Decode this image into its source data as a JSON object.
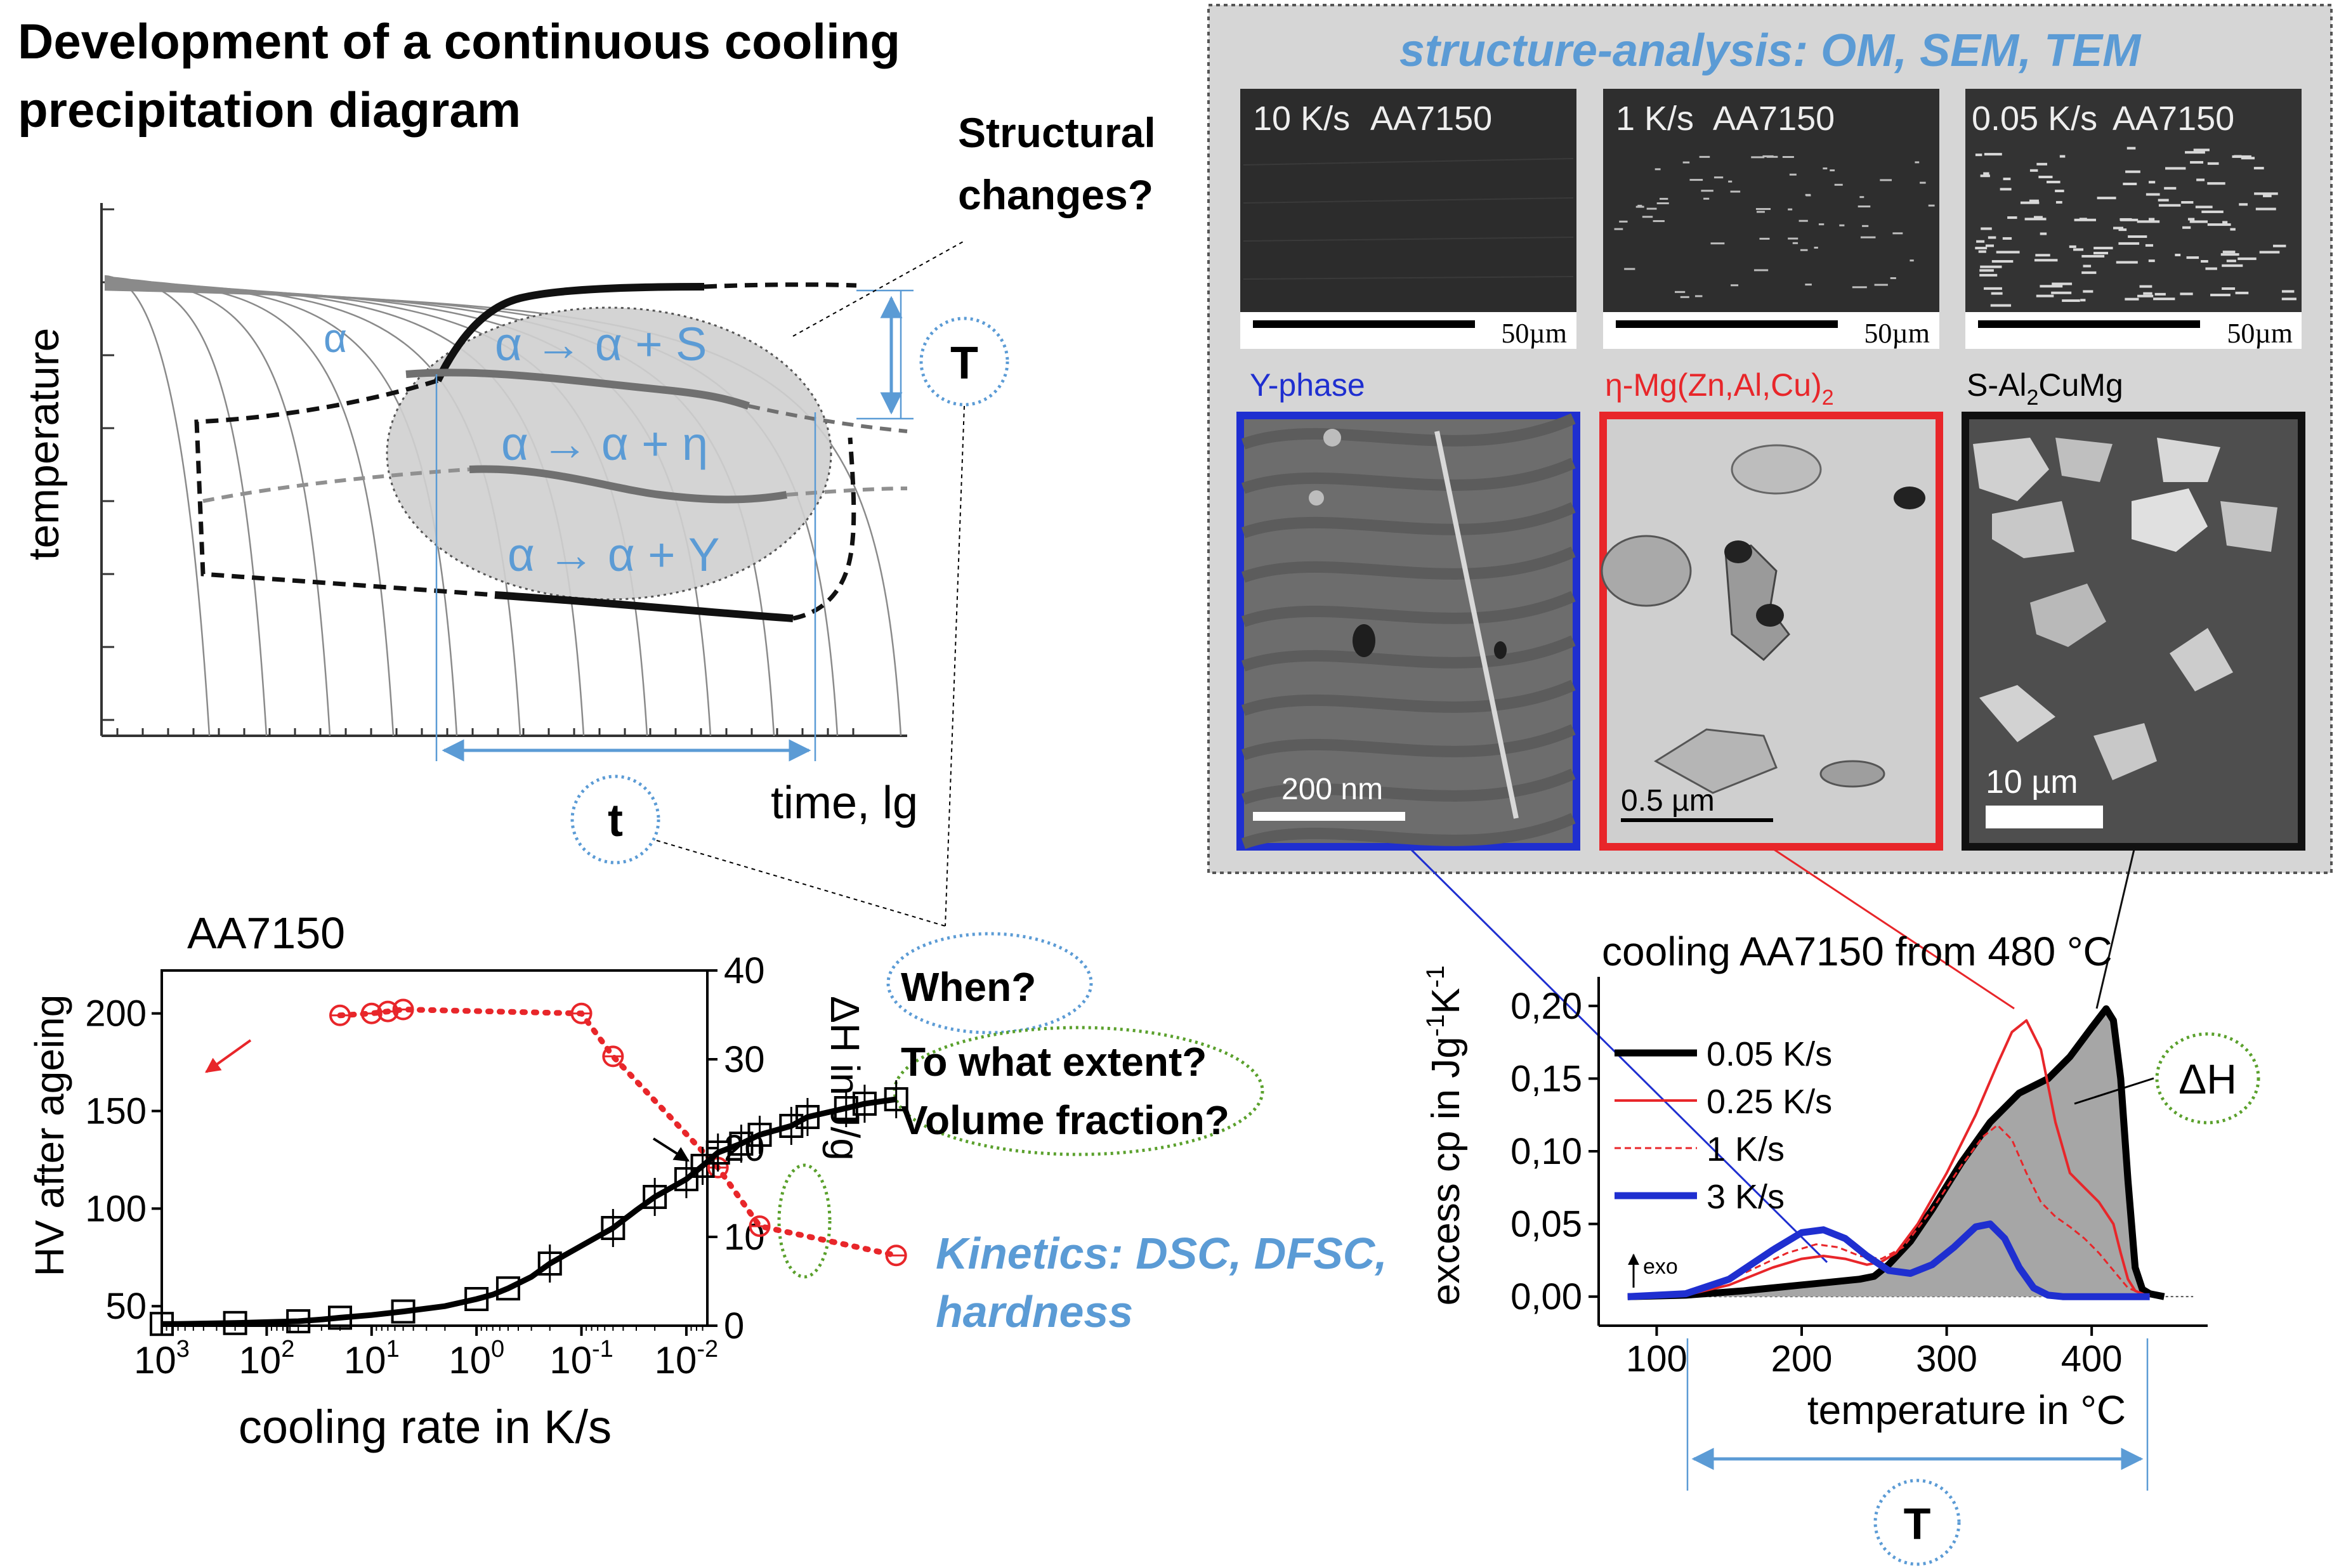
{
  "title": {
    "line1": "Development of a continuous cooling",
    "line2": "precipitation diagram"
  },
  "ccp_diagram": {
    "y_axis_label": "temperature",
    "x_axis_label": "time, lg",
    "alpha_label": "α",
    "reaction_s": "α → α + S",
    "reaction_eta": "α → α + η",
    "reaction_y": "α → α + Y",
    "question_line1": "Structural",
    "question_line2": "changes?",
    "T_bubble": "T",
    "t_bubble": "t"
  },
  "structure_panel": {
    "title": "structure-analysis: OM, SEM, TEM",
    "om_images": [
      {
        "rate": "10 K/s",
        "alloy": "AA7150",
        "scale": "50µm"
      },
      {
        "rate": "1 K/s",
        "alloy": "AA7150",
        "scale": "50µm"
      },
      {
        "rate": "0.05 K/s",
        "alloy": "AA7150",
        "scale": "50µm"
      }
    ],
    "phases": [
      {
        "label": "Y-phase",
        "scale": "200 nm",
        "frame_color": "#1f2fd0"
      },
      {
        "label_main": "η-Mg(Zn,Al,Cu)",
        "label_sub": "2",
        "scale": "0.5 µm",
        "frame_color": "#e8262a"
      },
      {
        "label_pre": "S-Al",
        "label_sub": "2",
        "label_post": "CuMg",
        "scale": "10 µm",
        "frame_color": "#111111"
      }
    ]
  },
  "questions": {
    "when": "When?",
    "extent": "To what extent?",
    "volume": "Volume fraction?"
  },
  "kinetics": {
    "line1": "Kinetics: DSC, DFSC,",
    "line2": "hardness"
  },
  "colors": {
    "accent_blue": "#5b9bd5",
    "red": "#e8262a",
    "blue_curve": "#1f2fd0",
    "green_dotted": "#5aa02c",
    "panel_gray": "#d6d6d6"
  },
  "chart_data": [
    {
      "type": "scatter",
      "title": "AA7150",
      "xlabel": "cooling rate in K/s",
      "ylabel": "HV after ageing",
      "y2label": "ΔH in J/g",
      "x_scale": "log-reversed",
      "x_tick_labels": [
        {
          "base": "10",
          "exp": "3"
        },
        {
          "base": "10",
          "exp": "2"
        },
        {
          "base": "10",
          "exp": "1"
        },
        {
          "base": "10",
          "exp": "0"
        },
        {
          "base": "10",
          "exp": "-1"
        },
        {
          "base": "10",
          "exp": "-2"
        }
      ],
      "y_ticks": [
        "50",
        "100",
        "150",
        "200"
      ],
      "y2_ticks": [
        "0",
        "10",
        "20",
        "30",
        "40"
      ],
      "ylim": [
        40,
        222
      ],
      "y2lim": [
        0,
        40
      ],
      "series": [
        {
          "name": "",
          "axis": "left",
          "color": "#e8262a",
          "marker": "circle-cross",
          "x": [
            20,
            10,
            7,
            5,
            0.1,
            0.05,
            0.005,
            0.002,
            0.0001
          ],
          "y": [
            199,
            200,
            201,
            202,
            200,
            178,
            121,
            91,
            76
          ]
        },
        {
          "name": "",
          "axis": "right",
          "color": "#000000",
          "marker": "square",
          "x": [
            1000,
            700,
            200,
            100,
            50,
            30,
            20,
            10,
            5,
            2,
            1,
            0.7,
            0.5,
            0.3,
            0.2,
            0.1,
            0.05,
            0.03,
            0.02,
            0.01,
            0.007,
            0.005,
            0.003,
            0.002,
            0.001,
            0.0007,
            0.0003,
            0.0002,
            0.0001
          ],
          "y": [
            0.2,
            0.2,
            0.3,
            0.4,
            0.5,
            0.7,
            0.9,
            1.2,
            1.6,
            2.2,
            3.0,
            3.5,
            4.2,
            5.5,
            7.0,
            9.0,
            11.0,
            13.0,
            14.5,
            16.5,
            18.0,
            19.5,
            20.5,
            21.5,
            22.5,
            23.5,
            24.5,
            25.0,
            25.5
          ]
        }
      ]
    },
    {
      "type": "area",
      "title": "cooling AA7150 from 480 °C",
      "xlabel": "temperature in °C",
      "ylabel_main": "excess cp in Jg",
      "ylabel_sup1": "-1",
      "ylabel_mid": "K",
      "ylabel_sup2": "-1",
      "x_ticks": [
        "100",
        "200",
        "300",
        "400"
      ],
      "y_ticks": [
        "0,00",
        "0,05",
        "0,10",
        "0,15",
        "0,20"
      ],
      "xlim": [
        60,
        480
      ],
      "ylim": [
        -0.02,
        0.22
      ],
      "exo_label": "exo",
      "dh_label": "ΔH",
      "T_bubble": "T",
      "series": [
        {
          "name": "0.05 K/s",
          "color": "#000000",
          "style": "thick-solid",
          "fill": "#a6a6a6",
          "x": [
            80,
            120,
            160,
            200,
            220,
            240,
            250,
            260,
            275,
            290,
            310,
            330,
            350,
            370,
            385,
            400,
            410,
            415,
            420,
            425,
            430,
            435,
            440,
            450
          ],
          "y": [
            0.0,
            0.001,
            0.004,
            0.008,
            0.01,
            0.012,
            0.014,
            0.022,
            0.038,
            0.06,
            0.092,
            0.12,
            0.14,
            0.15,
            0.165,
            0.185,
            0.198,
            0.19,
            0.15,
            0.08,
            0.02,
            0.005,
            0.002,
            0.0
          ]
        },
        {
          "name": "0.25 K/s",
          "color": "#e8262a",
          "style": "solid",
          "x": [
            80,
            120,
            150,
            180,
            200,
            215,
            230,
            245,
            255,
            265,
            280,
            300,
            320,
            335,
            345,
            355,
            365,
            375,
            385,
            395,
            405,
            415,
            420,
            425,
            430,
            440
          ],
          "y": [
            0.0,
            0.001,
            0.008,
            0.02,
            0.026,
            0.028,
            0.026,
            0.022,
            0.024,
            0.03,
            0.05,
            0.085,
            0.125,
            0.16,
            0.182,
            0.19,
            0.17,
            0.12,
            0.085,
            0.075,
            0.065,
            0.05,
            0.03,
            0.012,
            0.004,
            0.0
          ]
        },
        {
          "name": "1 K/s",
          "color": "#e8262a",
          "style": "dashed",
          "x": [
            80,
            120,
            160,
            190,
            210,
            225,
            240,
            255,
            270,
            290,
            310,
            325,
            335,
            345,
            355,
            365,
            375,
            385,
            395,
            405,
            415,
            425,
            440
          ],
          "y": [
            0.0,
            0.002,
            0.016,
            0.03,
            0.036,
            0.034,
            0.028,
            0.026,
            0.034,
            0.06,
            0.09,
            0.11,
            0.118,
            0.108,
            0.085,
            0.065,
            0.055,
            0.048,
            0.04,
            0.03,
            0.018,
            0.006,
            0.0
          ]
        },
        {
          "name": "3 K/s",
          "color": "#1f2fd0",
          "style": "thick-solid",
          "x": [
            80,
            120,
            150,
            180,
            200,
            215,
            230,
            245,
            260,
            275,
            290,
            305,
            320,
            330,
            340,
            350,
            360,
            370,
            380,
            400,
            420,
            440
          ],
          "y": [
            0.0,
            0.002,
            0.012,
            0.032,
            0.044,
            0.046,
            0.04,
            0.028,
            0.018,
            0.016,
            0.022,
            0.034,
            0.048,
            0.05,
            0.04,
            0.02,
            0.006,
            0.001,
            0.0,
            0.0,
            0.0,
            0.0
          ]
        }
      ]
    }
  ]
}
